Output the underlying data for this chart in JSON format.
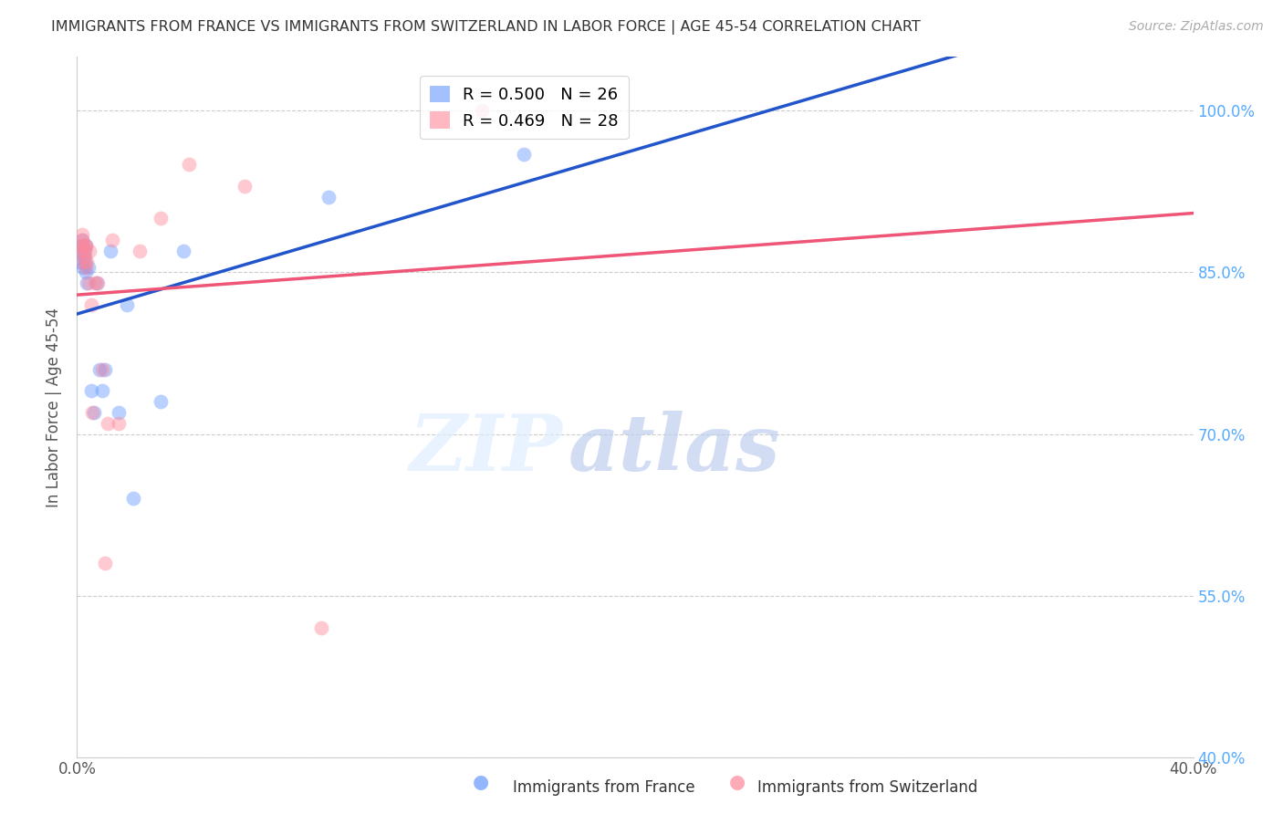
{
  "title": "IMMIGRANTS FROM FRANCE VS IMMIGRANTS FROM SWITZERLAND IN LABOR FORCE | AGE 45-54 CORRELATION CHART",
  "source": "Source: ZipAtlas.com",
  "ylabel": "In Labor Force | Age 45-54",
  "xlim": [
    0.0,
    40.0
  ],
  "ylim": [
    40.0,
    105.0
  ],
  "x_ticks": [
    0.0,
    5.0,
    10.0,
    15.0,
    20.0,
    25.0,
    30.0,
    35.0,
    40.0
  ],
  "x_tick_labels": [
    "0.0%",
    "",
    "",
    "",
    "",
    "",
    "",
    "",
    "40.0%"
  ],
  "y_ticks": [
    40.0,
    55.0,
    70.0,
    85.0,
    100.0
  ],
  "y_tick_labels": [
    "40.0%",
    "55.0%",
    "70.0%",
    "85.0%",
    "100.0%"
  ],
  "france_color": "#6699ff",
  "switzerland_color": "#ff8899",
  "france_line_color": "#2255cc",
  "switzerland_line_color": "#ee5577",
  "france_R": 0.5,
  "france_N": 26,
  "switzerland_R": 0.469,
  "switzerland_N": 28,
  "france_x": [
    0.1,
    0.15,
    0.18,
    0.2,
    0.22,
    0.25,
    0.27,
    0.28,
    0.3,
    0.32,
    0.35,
    0.4,
    0.5,
    0.6,
    0.7,
    0.8,
    0.9,
    1.0,
    1.2,
    1.5,
    1.8,
    2.0,
    3.0,
    3.8,
    9.0,
    16.0
  ],
  "france_y": [
    86.0,
    87.0,
    87.5,
    88.0,
    85.5,
    86.5,
    87.0,
    86.0,
    87.5,
    85.0,
    84.0,
    85.5,
    74.0,
    72.0,
    84.0,
    76.0,
    74.0,
    76.0,
    87.0,
    72.0,
    82.0,
    64.0,
    73.0,
    87.0,
    92.0,
    96.0
  ],
  "switzerland_x": [
    0.1,
    0.15,
    0.18,
    0.2,
    0.22,
    0.25,
    0.27,
    0.28,
    0.3,
    0.32,
    0.35,
    0.4,
    0.45,
    0.5,
    0.55,
    0.65,
    0.75,
    0.9,
    1.0,
    1.1,
    1.25,
    1.5,
    2.25,
    3.0,
    4.0,
    6.0,
    8.75,
    14.5
  ],
  "switzerland_y": [
    87.0,
    87.5,
    88.0,
    88.5,
    86.0,
    87.0,
    87.5,
    86.5,
    85.5,
    87.5,
    86.0,
    84.0,
    87.0,
    82.0,
    72.0,
    84.0,
    84.0,
    76.0,
    58.0,
    71.0,
    88.0,
    71.0,
    87.0,
    90.0,
    95.0,
    93.0,
    52.0,
    100.0
  ],
  "watermark_zip": "ZIP",
  "watermark_atlas": "atlas",
  "grid_color": "#cccccc",
  "background_color": "#ffffff",
  "legend_france_label": "R = 0.500   N = 26",
  "legend_switzerland_label": "R = 0.469   N = 28",
  "bottom_legend_france": "Immigrants from France",
  "bottom_legend_switzerland": "Immigrants from Switzerland"
}
